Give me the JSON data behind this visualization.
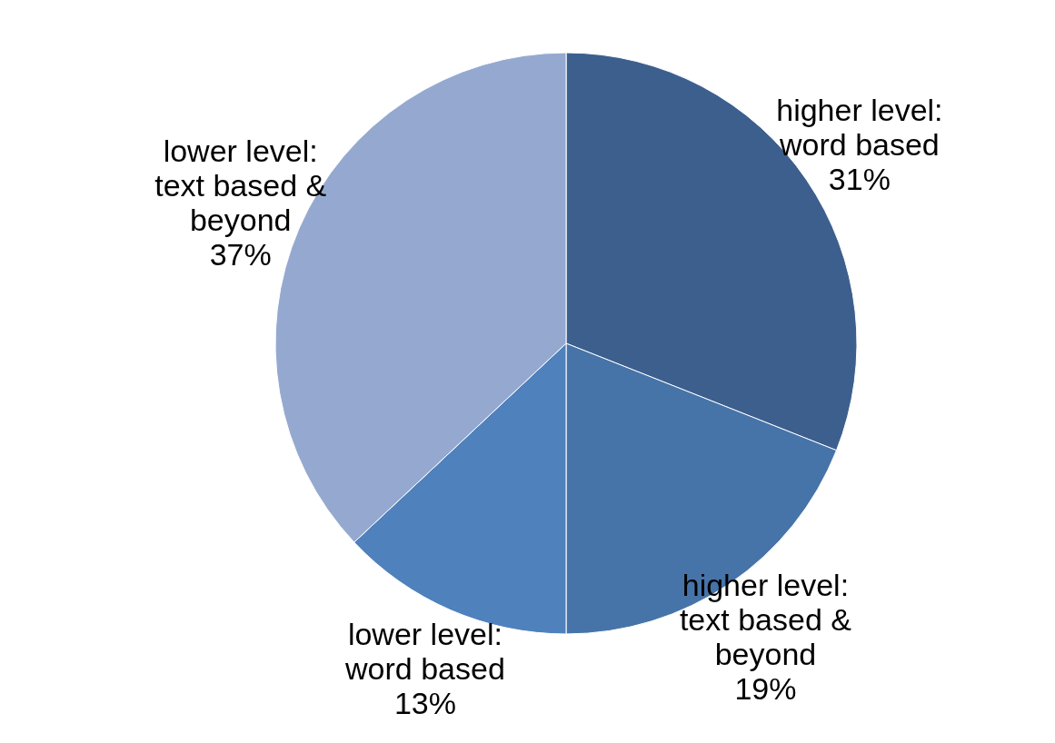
{
  "chart_data": {
    "type": "pie",
    "categories": [
      "higher level: word based",
      "higher level: text based & beyond",
      "lower level: word based",
      "lower level: text based & beyond"
    ],
    "values": [
      31,
      19,
      13,
      37
    ],
    "value_labels": [
      "31%",
      "19%",
      "13%",
      "37%"
    ],
    "colors": [
      "#3c5f8e",
      "#4674a8",
      "#4f81bd",
      "#95a9d0"
    ]
  }
}
